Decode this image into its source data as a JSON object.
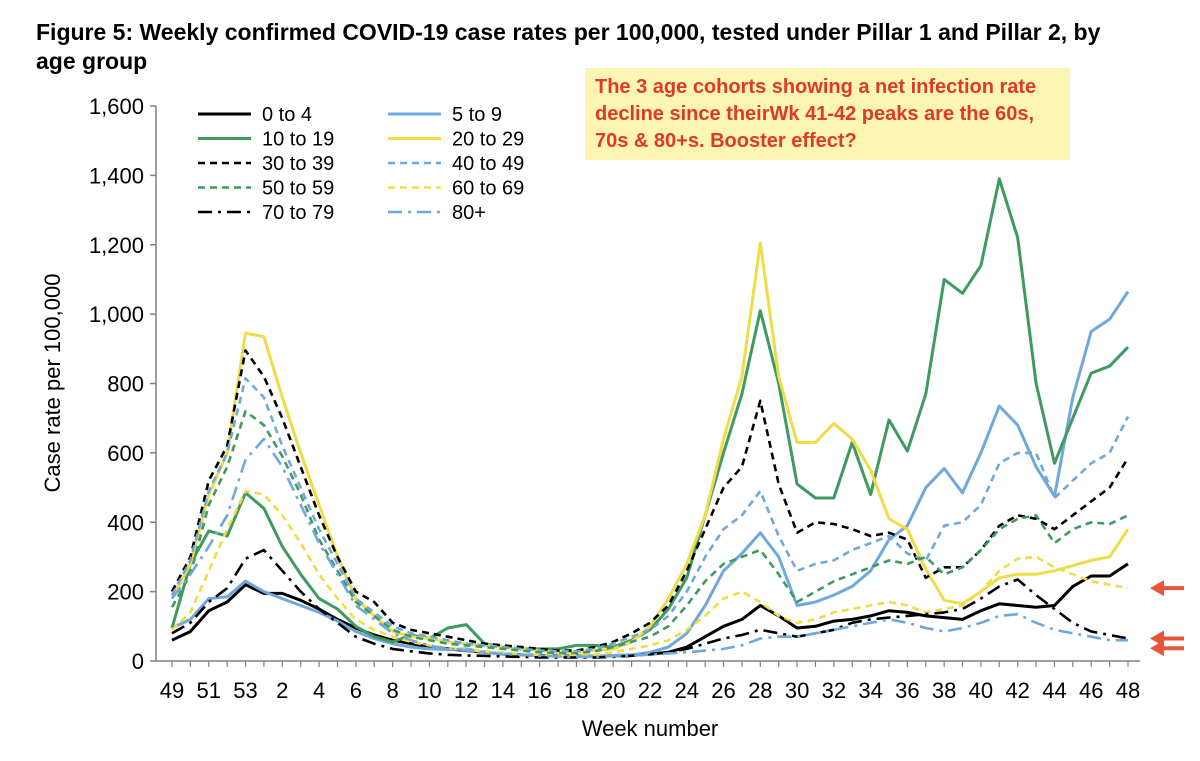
{
  "chart_data": {
    "type": "line",
    "title": "Figure 5: Weekly confirmed COVID-19 case rates per 100,000, tested under Pillar 1 and Pillar 2, by age group",
    "xlabel": "Week number",
    "ylabel": "Case rate per 100,000",
    "ylim": [
      0,
      1600
    ],
    "yticks": [
      0,
      200,
      400,
      600,
      800,
      1000,
      1200,
      1400,
      1600
    ],
    "ytick_labels": [
      "0",
      "200",
      "400",
      "600",
      "800",
      "1,000",
      "1,200",
      "1,400",
      "1,600"
    ],
    "x": [
      "49",
      "50",
      "51",
      "52",
      "53",
      "1",
      "2",
      "3",
      "4",
      "5",
      "6",
      "7",
      "8",
      "9",
      "10",
      "11",
      "12",
      "13",
      "14",
      "15",
      "16",
      "17",
      "18",
      "19",
      "20",
      "21",
      "22",
      "23",
      "24",
      "25",
      "26",
      "27",
      "28",
      "29",
      "30",
      "31",
      "32",
      "33",
      "34",
      "35",
      "36",
      "37",
      "38",
      "39",
      "40",
      "41",
      "42",
      "43",
      "44",
      "45",
      "46",
      "47",
      "48"
    ],
    "xtick_labels": [
      "49",
      "51",
      "53",
      "2",
      "4",
      "6",
      "8",
      "10",
      "12",
      "14",
      "16",
      "18",
      "20",
      "22",
      "24",
      "26",
      "28",
      "30",
      "32",
      "34",
      "36",
      "38",
      "40",
      "42",
      "44",
      "46",
      "48"
    ],
    "legend_position": "top-left",
    "annotation": "The 3 age cohorts showing a net infection rate decline since theirWk 41-42 peaks are the 60s, 70s & 80+s. Booster effect?",
    "arrow_markers": [
      "60 to 69",
      "70 to 79",
      "80+"
    ],
    "series": [
      {
        "name": "0 to 4",
        "color": "#000000",
        "dash": "solid",
        "values": [
          60,
          85,
          145,
          170,
          220,
          195,
          195,
          175,
          150,
          120,
          95,
          75,
          60,
          50,
          40,
          35,
          30,
          25,
          20,
          18,
          16,
          15,
          14,
          14,
          15,
          16,
          20,
          25,
          40,
          70,
          100,
          120,
          160,
          130,
          95,
          100,
          115,
          120,
          130,
          145,
          140,
          130,
          125,
          120,
          145,
          165,
          160,
          155,
          160,
          215,
          245,
          245,
          280
        ]
      },
      {
        "name": "5 to 9",
        "color": "#6fa8dc",
        "dash": "solid",
        "values": [
          95,
          120,
          180,
          185,
          230,
          200,
          180,
          160,
          140,
          115,
          85,
          65,
          50,
          40,
          35,
          33,
          35,
          25,
          20,
          18,
          15,
          14,
          13,
          14,
          16,
          18,
          25,
          40,
          80,
          160,
          260,
          310,
          370,
          300,
          160,
          170,
          190,
          215,
          260,
          350,
          390,
          500,
          555,
          485,
          600,
          735,
          680,
          560,
          475,
          760,
          950,
          985,
          1065
        ]
      },
      {
        "name": "10 to 19",
        "color": "#3f9a5f",
        "dash": "solid",
        "values": [
          95,
          280,
          375,
          360,
          485,
          440,
          330,
          250,
          180,
          150,
          100,
          70,
          55,
          75,
          65,
          95,
          105,
          50,
          40,
          35,
          35,
          35,
          45,
          45,
          40,
          60,
          90,
          150,
          240,
          420,
          600,
          770,
          1010,
          800,
          510,
          470,
          470,
          630,
          480,
          695,
          605,
          770,
          1100,
          1060,
          1140,
          1390,
          1220,
          800,
          570,
          700,
          830,
          850,
          905
        ]
      },
      {
        "name": "20 to 29",
        "color": "#f0dc46",
        "dash": "solid",
        "values": [
          180,
          280,
          480,
          600,
          945,
          935,
          760,
          600,
          450,
          300,
          180,
          130,
          85,
          70,
          65,
          55,
          50,
          45,
          40,
          35,
          30,
          25,
          25,
          30,
          35,
          55,
          100,
          180,
          280,
          420,
          640,
          820,
          1205,
          820,
          630,
          630,
          685,
          640,
          550,
          410,
          380,
          265,
          175,
          165,
          200,
          240,
          250,
          250,
          260,
          275,
          290,
          300,
          380
        ]
      },
      {
        "name": "30 to 39",
        "color": "#000000",
        "dash": "dashed",
        "values": [
          200,
          300,
          520,
          620,
          895,
          820,
          700,
          560,
          420,
          300,
          200,
          170,
          110,
          90,
          80,
          70,
          60,
          50,
          45,
          40,
          35,
          30,
          30,
          40,
          55,
          80,
          110,
          160,
          260,
          380,
          500,
          560,
          750,
          510,
          370,
          400,
          395,
          380,
          360,
          370,
          350,
          240,
          270,
          270,
          320,
          390,
          420,
          410,
          380,
          420,
          460,
          500,
          585
        ]
      },
      {
        "name": "40 to 49",
        "color": "#6fa8dc",
        "dash": "dashed",
        "values": [
          190,
          290,
          490,
          600,
          815,
          760,
          620,
          500,
          380,
          280,
          180,
          140,
          100,
          80,
          70,
          60,
          50,
          45,
          40,
          35,
          30,
          28,
          28,
          35,
          50,
          70,
          90,
          130,
          200,
          300,
          380,
          420,
          490,
          360,
          260,
          280,
          290,
          320,
          340,
          360,
          310,
          290,
          390,
          400,
          450,
          570,
          600,
          600,
          470,
          520,
          570,
          600,
          705
        ]
      },
      {
        "name": "50 to 59",
        "color": "#3f9a5f",
        "dash": "dashed",
        "values": [
          155,
          250,
          450,
          560,
          720,
          680,
          590,
          480,
          350,
          260,
          170,
          130,
          90,
          70,
          60,
          50,
          45,
          40,
          35,
          30,
          25,
          22,
          22,
          28,
          40,
          55,
          70,
          100,
          160,
          230,
          280,
          300,
          320,
          250,
          170,
          200,
          230,
          250,
          270,
          290,
          280,
          300,
          250,
          270,
          320,
          380,
          410,
          420,
          340,
          380,
          400,
          395,
          420
        ]
      },
      {
        "name": "60 to 69",
        "color": "#f0dc46",
        "dash": "dashed",
        "values": [
          90,
          140,
          260,
          380,
          490,
          480,
          420,
          340,
          250,
          180,
          120,
          90,
          70,
          55,
          45,
          38,
          32,
          28,
          24,
          20,
          18,
          16,
          16,
          18,
          25,
          35,
          45,
          60,
          90,
          130,
          180,
          200,
          170,
          130,
          110,
          120,
          140,
          150,
          160,
          170,
          160,
          140,
          150,
          160,
          200,
          260,
          295,
          300,
          270,
          250,
          230,
          220,
          210
        ]
      },
      {
        "name": "70 to 79",
        "color": "#000000",
        "dash": "dashdot",
        "values": [
          80,
          110,
          170,
          210,
          295,
          320,
          260,
          200,
          150,
          110,
          70,
          50,
          35,
          28,
          22,
          18,
          16,
          15,
          13,
          12,
          10,
          10,
          10,
          10,
          12,
          15,
          20,
          25,
          35,
          50,
          65,
          75,
          90,
          80,
          70,
          80,
          90,
          110,
          120,
          125,
          130,
          135,
          140,
          150,
          180,
          215,
          235,
          190,
          150,
          110,
          85,
          75,
          65
        ]
      },
      {
        "name": "80+",
        "color": "#6fa8dc",
        "dash": "dashdot",
        "values": [
          180,
          250,
          330,
          420,
          580,
          640,
          560,
          450,
          340,
          250,
          160,
          120,
          80,
          60,
          45,
          35,
          30,
          25,
          20,
          18,
          15,
          13,
          12,
          12,
          14,
          16,
          18,
          22,
          25,
          30,
          35,
          45,
          65,
          70,
          70,
          80,
          90,
          100,
          110,
          120,
          110,
          95,
          85,
          95,
          110,
          130,
          135,
          110,
          90,
          80,
          70,
          60,
          60
        ]
      }
    ]
  }
}
